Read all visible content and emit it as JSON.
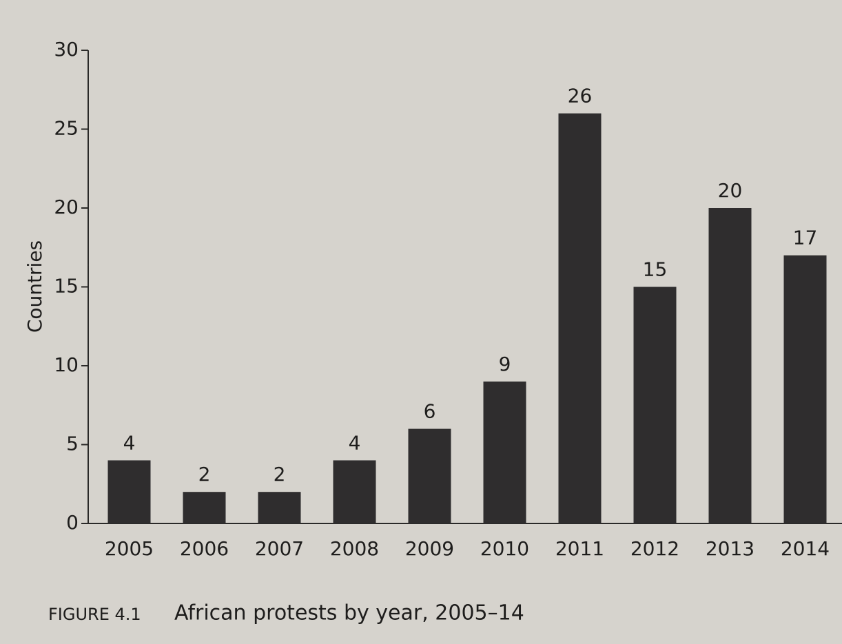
{
  "chart_data": {
    "type": "bar",
    "y_label": "Countries",
    "figure_label": "FIGURE 4.1",
    "caption": "African protests by year, 2005–14",
    "categories": [
      "2005",
      "2006",
      "2007",
      "2008",
      "2009",
      "2010",
      "2011",
      "2012",
      "2013",
      "2014"
    ],
    "values": [
      4,
      2,
      2,
      4,
      6,
      9,
      26,
      15,
      20,
      17
    ],
    "color": "#2f2d2e",
    "ylim": [
      0,
      30
    ],
    "yticks": [
      0,
      5,
      10,
      15,
      20,
      25,
      30
    ],
    "grid": false
  }
}
